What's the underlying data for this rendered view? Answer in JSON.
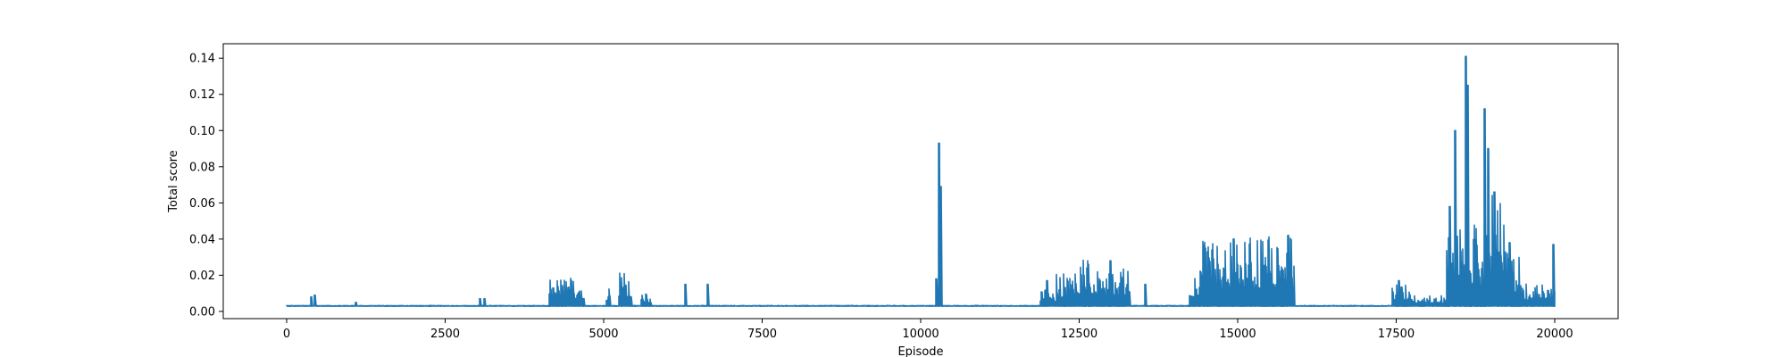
{
  "chart_data": {
    "type": "line",
    "title": "",
    "xlabel": "Episode",
    "ylabel": "Total score",
    "xlim": [
      -1000,
      21000
    ],
    "ylim": [
      -0.004,
      0.148
    ],
    "xticks": [
      0,
      2500,
      5000,
      7500,
      10000,
      12500,
      15000,
      17500,
      20000
    ],
    "xtick_labels": [
      "0",
      "2500",
      "5000",
      "7500",
      "10000",
      "12500",
      "15000",
      "17500",
      "20000"
    ],
    "yticks": [
      0.0,
      0.02,
      0.04,
      0.06,
      0.08,
      0.1,
      0.12,
      0.14
    ],
    "ytick_labels": [
      "0.00",
      "0.02",
      "0.04",
      "0.06",
      "0.08",
      "0.10",
      "0.12",
      "0.14"
    ],
    "grid": false,
    "legend": "none",
    "line_color": "#1f77b4",
    "baseline": 0.003,
    "episodes": 20000,
    "spikes": [
      {
        "x": 400,
        "y": 0.008
      },
      {
        "x": 450,
        "y": 0.009
      },
      {
        "x": 1100,
        "y": 0.005
      },
      {
        "x": 3050,
        "y": 0.007
      },
      {
        "x": 3120,
        "y": 0.007
      },
      {
        "x": 6300,
        "y": 0.015
      },
      {
        "x": 6650,
        "y": 0.015
      },
      {
        "x": 10300,
        "y": 0.093
      },
      {
        "x": 10330,
        "y": 0.069
      },
      {
        "x": 10250,
        "y": 0.018
      },
      {
        "x": 12000,
        "y": 0.017
      },
      {
        "x": 12650,
        "y": 0.026
      },
      {
        "x": 13000,
        "y": 0.028
      },
      {
        "x": 13550,
        "y": 0.015
      },
      {
        "x": 14500,
        "y": 0.035
      },
      {
        "x": 14950,
        "y": 0.04
      },
      {
        "x": 15800,
        "y": 0.042
      },
      {
        "x": 17550,
        "y": 0.017
      },
      {
        "x": 18350,
        "y": 0.058
      },
      {
        "x": 18430,
        "y": 0.1
      },
      {
        "x": 18610,
        "y": 0.141
      },
      {
        "x": 18640,
        "y": 0.125
      },
      {
        "x": 18900,
        "y": 0.112
      },
      {
        "x": 18960,
        "y": 0.09
      },
      {
        "x": 19050,
        "y": 0.066
      },
      {
        "x": 19300,
        "y": 0.038
      },
      {
        "x": 19980,
        "y": 0.037
      }
    ],
    "noise_regions": [
      {
        "x0": 4150,
        "x1": 4700,
        "amp": 0.016
      },
      {
        "x0": 5050,
        "x1": 5100,
        "amp": 0.012
      },
      {
        "x0": 5250,
        "x1": 5450,
        "amp": 0.02
      },
      {
        "x0": 5600,
        "x1": 5750,
        "amp": 0.007
      },
      {
        "x0": 11900,
        "x1": 12150,
        "amp": 0.01
      },
      {
        "x0": 12150,
        "x1": 12400,
        "amp": 0.018
      },
      {
        "x0": 12400,
        "x1": 12800,
        "amp": 0.026
      },
      {
        "x0": 12800,
        "x1": 13300,
        "amp": 0.022
      },
      {
        "x0": 14250,
        "x1": 14450,
        "amp": 0.02
      },
      {
        "x0": 14450,
        "x1": 15000,
        "amp": 0.036
      },
      {
        "x0": 15000,
        "x1": 15500,
        "amp": 0.038
      },
      {
        "x0": 15500,
        "x1": 15900,
        "amp": 0.04
      },
      {
        "x0": 17450,
        "x1": 17750,
        "amp": 0.012
      },
      {
        "x0": 17750,
        "x1": 18300,
        "amp": 0.006
      },
      {
        "x0": 18300,
        "x1": 18450,
        "amp": 0.04
      },
      {
        "x0": 18450,
        "x1": 18900,
        "amp": 0.045
      },
      {
        "x0": 18900,
        "x1": 19200,
        "amp": 0.065
      },
      {
        "x0": 19200,
        "x1": 19450,
        "amp": 0.03
      },
      {
        "x0": 19450,
        "x1": 20000,
        "amp": 0.013
      }
    ]
  }
}
